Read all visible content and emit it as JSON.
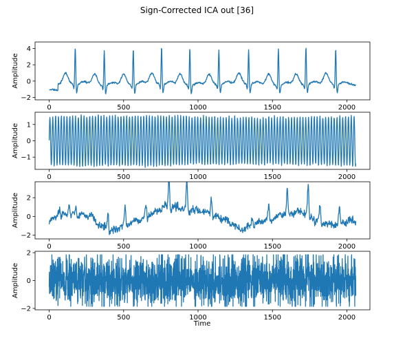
{
  "figure": {
    "title": "Sign-Corrected ICA out [36]",
    "xlabel": "Time"
  },
  "colors": {
    "line": "#1f77b4",
    "axes": "#000000",
    "background": "#ffffff"
  },
  "chart_data": [
    {
      "type": "line",
      "ylabel": "Amplitude",
      "xlim": [
        -95,
        2155
      ],
      "ylim": [
        -2.3,
        4.8
      ],
      "xticks": [
        0,
        500,
        1000,
        1500,
        2000
      ],
      "yticks": [
        -2,
        0,
        2,
        4
      ],
      "x_range": [
        0,
        2060
      ],
      "grid": false,
      "signal": "ECG-like quasi-periodic component, ~10.7 beats, R peaks ~4.3, baseline ~-0.5, trough ~-1.5, T-wave ~1.0",
      "peaks": [
        {
          "x": 175,
          "y": 4.3
        },
        {
          "x": 370,
          "y": 4.1
        },
        {
          "x": 565,
          "y": 4.2
        },
        {
          "x": 755,
          "y": 4.4
        },
        {
          "x": 945,
          "y": 4.3
        },
        {
          "x": 1140,
          "y": 4.1
        },
        {
          "x": 1340,
          "y": 4.1
        },
        {
          "x": 1540,
          "y": 4.3
        },
        {
          "x": 1725,
          "y": 4.5
        },
        {
          "x": 1925,
          "y": 4.2
        }
      ]
    },
    {
      "type": "line",
      "ylabel": "Amplitude",
      "xlim": [
        -95,
        2155
      ],
      "ylim": [
        -1.75,
        1.75
      ],
      "xticks": [
        0,
        500,
        1000,
        1500,
        2000
      ],
      "yticks": [
        -1,
        0,
        1
      ],
      "x_range": [
        0,
        2060
      ],
      "grid": false,
      "signal": "Dense near-sinusoidal oscillation, ~108 cycles, amplitude ~1.5"
    },
    {
      "type": "line",
      "ylabel": "Amplitude",
      "xlim": [
        -95,
        2155
      ],
      "ylim": [
        -2.4,
        3.7
      ],
      "xticks": [
        0,
        500,
        1000,
        1500,
        2000
      ],
      "yticks": [
        -2,
        0,
        2
      ],
      "x_range": [
        0,
        2060
      ],
      "grid": false,
      "signal": "Slowly varying noisy component with spikes up to ~3.4 and dips to ~-2.1"
    },
    {
      "type": "line",
      "ylabel": "Amplitude",
      "xlim": [
        -95,
        2155
      ],
      "ylim": [
        -2.1,
        2.1
      ],
      "xticks": [
        0,
        500,
        1000,
        1500,
        2000
      ],
      "yticks": [
        -2,
        0,
        2
      ],
      "x_range": [
        0,
        2060
      ],
      "grid": false,
      "signal": "Broadband noise filling roughly -1.8 to 1.8"
    }
  ]
}
